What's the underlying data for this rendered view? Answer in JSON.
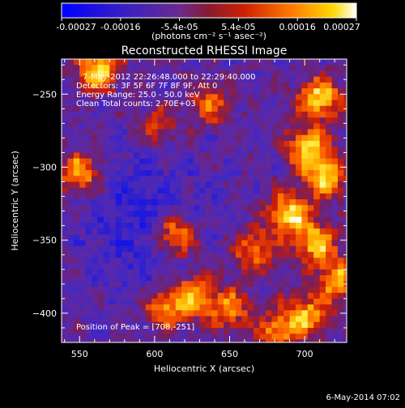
{
  "colorbar": {
    "min": -0.00027,
    "max": 0.00027,
    "tick_labels": [
      "-0.00027",
      "-0.00016",
      "-5.4e-05",
      "5.4e-05",
      "0.00016",
      "0.00027"
    ],
    "unit_label": "(photons cm⁻² s⁻¹ asec⁻²)",
    "colormap": [
      "#0000ff",
      "#5a2aa0",
      "#7a1a3a",
      "#c81e00",
      "#ff6a00",
      "#ffd200",
      "#ffffff"
    ]
  },
  "annotations": {
    "time_range": "7-May-2012 22:26:48.000 to 22:29:40.000",
    "detectors": "Detectors: 3F 5F 6F 7F 8F 9F, Att 0",
    "energy": "Energy Range: 25.0 - 50.0 keV",
    "clean": "Clean     Total counts: 2.70E+03",
    "peak": "Position of Peak = [708,-251]"
  },
  "footer": {
    "date": "6-May-2014 07:02"
  },
  "chart_data": {
    "type": "heatmap",
    "title": "Reconstructed RHESSI Image",
    "xlabel": "Heliocentric X (arcsec)",
    "ylabel": "Heliocentric Y (arcsec)",
    "xlim": [
      538,
      728
    ],
    "ylim": [
      -420,
      -226
    ],
    "x_ticks": [
      550,
      600,
      650,
      700
    ],
    "y_ticks": [
      -250,
      -300,
      -350,
      -400
    ],
    "peak": [
      708,
      -251
    ],
    "hotspots": [
      {
        "x": 560,
        "y": -232,
        "v": 1.0
      },
      {
        "x": 548,
        "y": -302,
        "v": 0.9
      },
      {
        "x": 612,
        "y": -345,
        "v": 0.9
      },
      {
        "x": 605,
        "y": -395,
        "v": 0.8
      },
      {
        "x": 625,
        "y": -385,
        "v": 0.8
      },
      {
        "x": 648,
        "y": -395,
        "v": 0.7
      },
      {
        "x": 635,
        "y": -255,
        "v": 0.6
      },
      {
        "x": 600,
        "y": -270,
        "v": 0.5
      },
      {
        "x": 708,
        "y": -251,
        "v": 1.0
      },
      {
        "x": 700,
        "y": -285,
        "v": 0.95
      },
      {
        "x": 712,
        "y": -305,
        "v": 0.9
      },
      {
        "x": 688,
        "y": -330,
        "v": 1.0
      },
      {
        "x": 705,
        "y": -350,
        "v": 0.9
      },
      {
        "x": 720,
        "y": -375,
        "v": 0.85
      },
      {
        "x": 700,
        "y": -400,
        "v": 0.8
      },
      {
        "x": 665,
        "y": -355,
        "v": 0.7
      },
      {
        "x": 680,
        "y": -410,
        "v": 0.7
      }
    ]
  }
}
